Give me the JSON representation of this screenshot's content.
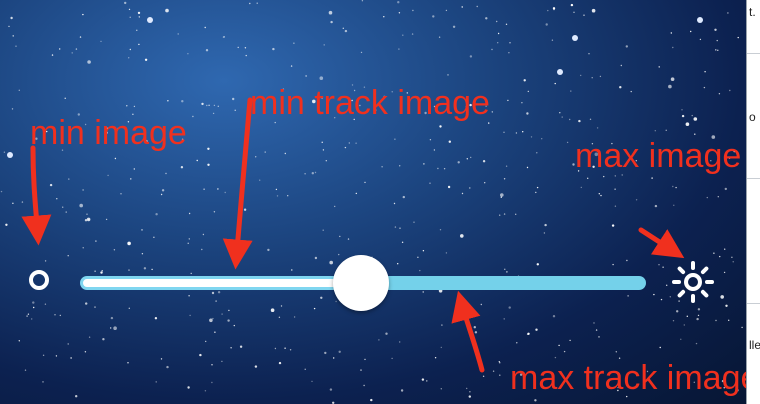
{
  "annotations": {
    "min_image": "min image",
    "min_track_image": "min track image",
    "max_image": "max image",
    "max_track_image": "max track image"
  },
  "slider": {
    "value": 0.5
  },
  "side_panel": {
    "frag1": "t.",
    "frag2": "o",
    "frag3": "lle"
  },
  "colors": {
    "annotation": "#f0301e",
    "track_max": "#74d1ea",
    "track_min_border": "#7fd6f0"
  }
}
